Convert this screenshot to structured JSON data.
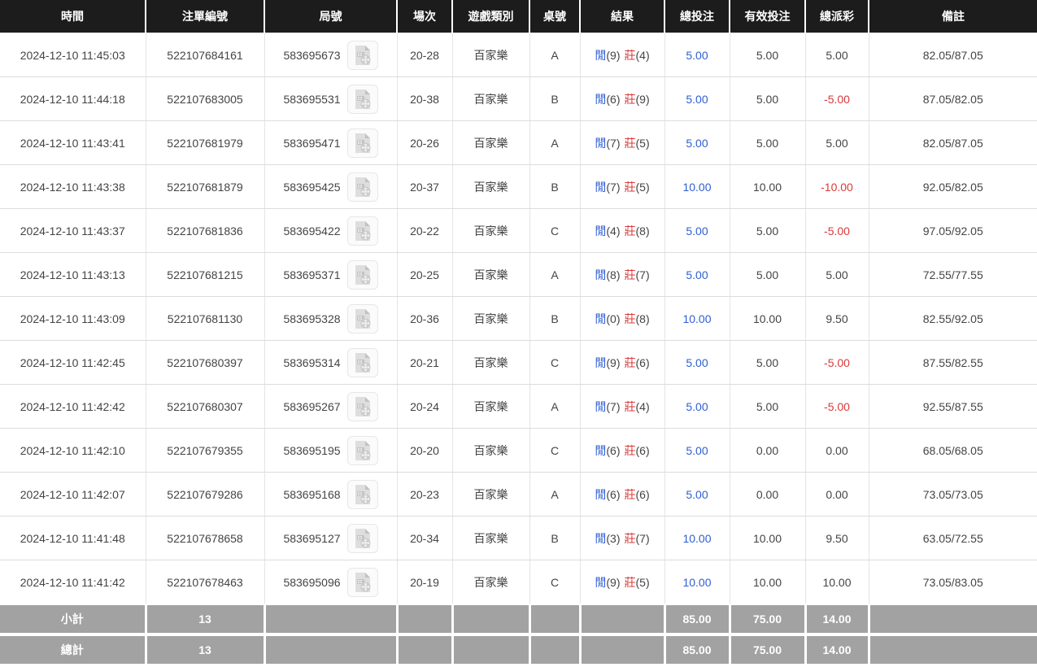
{
  "table": {
    "columns": [
      {
        "key": "time",
        "label": "時間"
      },
      {
        "key": "bet_id",
        "label": "注單編號"
      },
      {
        "key": "round_id",
        "label": "局號"
      },
      {
        "key": "session",
        "label": "場次"
      },
      {
        "key": "game_type",
        "label": "遊戲類別"
      },
      {
        "key": "table_no",
        "label": "桌號"
      },
      {
        "key": "result",
        "label": "結果"
      },
      {
        "key": "total_bet",
        "label": "總投注"
      },
      {
        "key": "valid_bet",
        "label": "有效投注"
      },
      {
        "key": "total_payout",
        "label": "總派彩"
      },
      {
        "key": "remark",
        "label": "備註"
      }
    ],
    "round_video_icon": "video-file-icon",
    "colors": {
      "header_bg": "#1c1c1c",
      "player_blue": "#2f5ed2",
      "banker_red": "#d93a3a",
      "negative_red": "#d93a3a",
      "summary_bg": "#a2a2a2"
    },
    "rows": [
      {
        "time": "2024-12-10 11:45:03",
        "bet_id": "522107684161",
        "round_id": "583695673",
        "session": "20-28",
        "game_type": "百家樂",
        "table_no": "A",
        "result": {
          "player_label": "閒",
          "player_score": "(9)",
          "banker_label": "莊",
          "banker_score": "(4)"
        },
        "total_bet": "5.00",
        "valid_bet": "5.00",
        "total_payout": "5.00",
        "remark": "82.05/87.05"
      },
      {
        "time": "2024-12-10 11:44:18",
        "bet_id": "522107683005",
        "round_id": "583695531",
        "session": "20-38",
        "game_type": "百家樂",
        "table_no": "B",
        "result": {
          "player_label": "閒",
          "player_score": "(6)",
          "banker_label": "莊",
          "banker_score": "(9)"
        },
        "total_bet": "5.00",
        "valid_bet": "5.00",
        "total_payout": "-5.00",
        "remark": "87.05/82.05"
      },
      {
        "time": "2024-12-10 11:43:41",
        "bet_id": "522107681979",
        "round_id": "583695471",
        "session": "20-26",
        "game_type": "百家樂",
        "table_no": "A",
        "result": {
          "player_label": "閒",
          "player_score": "(7)",
          "banker_label": "莊",
          "banker_score": "(5)"
        },
        "total_bet": "5.00",
        "valid_bet": "5.00",
        "total_payout": "5.00",
        "remark": "82.05/87.05"
      },
      {
        "time": "2024-12-10 11:43:38",
        "bet_id": "522107681879",
        "round_id": "583695425",
        "session": "20-37",
        "game_type": "百家樂",
        "table_no": "B",
        "result": {
          "player_label": "閒",
          "player_score": "(7)",
          "banker_label": "莊",
          "banker_score": "(5)"
        },
        "total_bet": "10.00",
        "valid_bet": "10.00",
        "total_payout": "-10.00",
        "remark": "92.05/82.05"
      },
      {
        "time": "2024-12-10 11:43:37",
        "bet_id": "522107681836",
        "round_id": "583695422",
        "session": "20-22",
        "game_type": "百家樂",
        "table_no": "C",
        "result": {
          "player_label": "閒",
          "player_score": "(4)",
          "banker_label": "莊",
          "banker_score": "(8)"
        },
        "total_bet": "5.00",
        "valid_bet": "5.00",
        "total_payout": "-5.00",
        "remark": "97.05/92.05"
      },
      {
        "time": "2024-12-10 11:43:13",
        "bet_id": "522107681215",
        "round_id": "583695371",
        "session": "20-25",
        "game_type": "百家樂",
        "table_no": "A",
        "result": {
          "player_label": "閒",
          "player_score": "(8)",
          "banker_label": "莊",
          "banker_score": "(7)"
        },
        "total_bet": "5.00",
        "valid_bet": "5.00",
        "total_payout": "5.00",
        "remark": "72.55/77.55"
      },
      {
        "time": "2024-12-10 11:43:09",
        "bet_id": "522107681130",
        "round_id": "583695328",
        "session": "20-36",
        "game_type": "百家樂",
        "table_no": "B",
        "result": {
          "player_label": "閒",
          "player_score": "(0)",
          "banker_label": "莊",
          "banker_score": "(8)"
        },
        "total_bet": "10.00",
        "valid_bet": "10.00",
        "total_payout": "9.50",
        "remark": "82.55/92.05"
      },
      {
        "time": "2024-12-10 11:42:45",
        "bet_id": "522107680397",
        "round_id": "583695314",
        "session": "20-21",
        "game_type": "百家樂",
        "table_no": "C",
        "result": {
          "player_label": "閒",
          "player_score": "(9)",
          "banker_label": "莊",
          "banker_score": "(6)"
        },
        "total_bet": "5.00",
        "valid_bet": "5.00",
        "total_payout": "-5.00",
        "remark": "87.55/82.55"
      },
      {
        "time": "2024-12-10 11:42:42",
        "bet_id": "522107680307",
        "round_id": "583695267",
        "session": "20-24",
        "game_type": "百家樂",
        "table_no": "A",
        "result": {
          "player_label": "閒",
          "player_score": "(7)",
          "banker_label": "莊",
          "banker_score": "(4)"
        },
        "total_bet": "5.00",
        "valid_bet": "5.00",
        "total_payout": "-5.00",
        "remark": "92.55/87.55"
      },
      {
        "time": "2024-12-10 11:42:10",
        "bet_id": "522107679355",
        "round_id": "583695195",
        "session": "20-20",
        "game_type": "百家樂",
        "table_no": "C",
        "result": {
          "player_label": "閒",
          "player_score": "(6)",
          "banker_label": "莊",
          "banker_score": "(6)"
        },
        "total_bet": "5.00",
        "valid_bet": "0.00",
        "total_payout": "0.00",
        "remark": "68.05/68.05"
      },
      {
        "time": "2024-12-10 11:42:07",
        "bet_id": "522107679286",
        "round_id": "583695168",
        "session": "20-23",
        "game_type": "百家樂",
        "table_no": "A",
        "result": {
          "player_label": "閒",
          "player_score": "(6)",
          "banker_label": "莊",
          "banker_score": "(6)"
        },
        "total_bet": "5.00",
        "valid_bet": "0.00",
        "total_payout": "0.00",
        "remark": "73.05/73.05"
      },
      {
        "time": "2024-12-10 11:41:48",
        "bet_id": "522107678658",
        "round_id": "583695127",
        "session": "20-34",
        "game_type": "百家樂",
        "table_no": "B",
        "result": {
          "player_label": "閒",
          "player_score": "(3)",
          "banker_label": "莊",
          "banker_score": "(7)"
        },
        "total_bet": "10.00",
        "valid_bet": "10.00",
        "total_payout": "9.50",
        "remark": "63.05/72.55"
      },
      {
        "time": "2024-12-10 11:41:42",
        "bet_id": "522107678463",
        "round_id": "583695096",
        "session": "20-19",
        "game_type": "百家樂",
        "table_no": "C",
        "result": {
          "player_label": "閒",
          "player_score": "(9)",
          "banker_label": "莊",
          "banker_score": "(5)"
        },
        "total_bet": "10.00",
        "valid_bet": "10.00",
        "total_payout": "10.00",
        "remark": "73.05/83.05"
      }
    ],
    "summary": [
      {
        "id": "subtotal",
        "label": "小計",
        "count": "13",
        "total_bet": "85.00",
        "valid_bet": "75.00",
        "total_payout": "14.00"
      },
      {
        "id": "total",
        "label": "總計",
        "count": "13",
        "total_bet": "85.00",
        "valid_bet": "75.00",
        "total_payout": "14.00"
      }
    ]
  }
}
